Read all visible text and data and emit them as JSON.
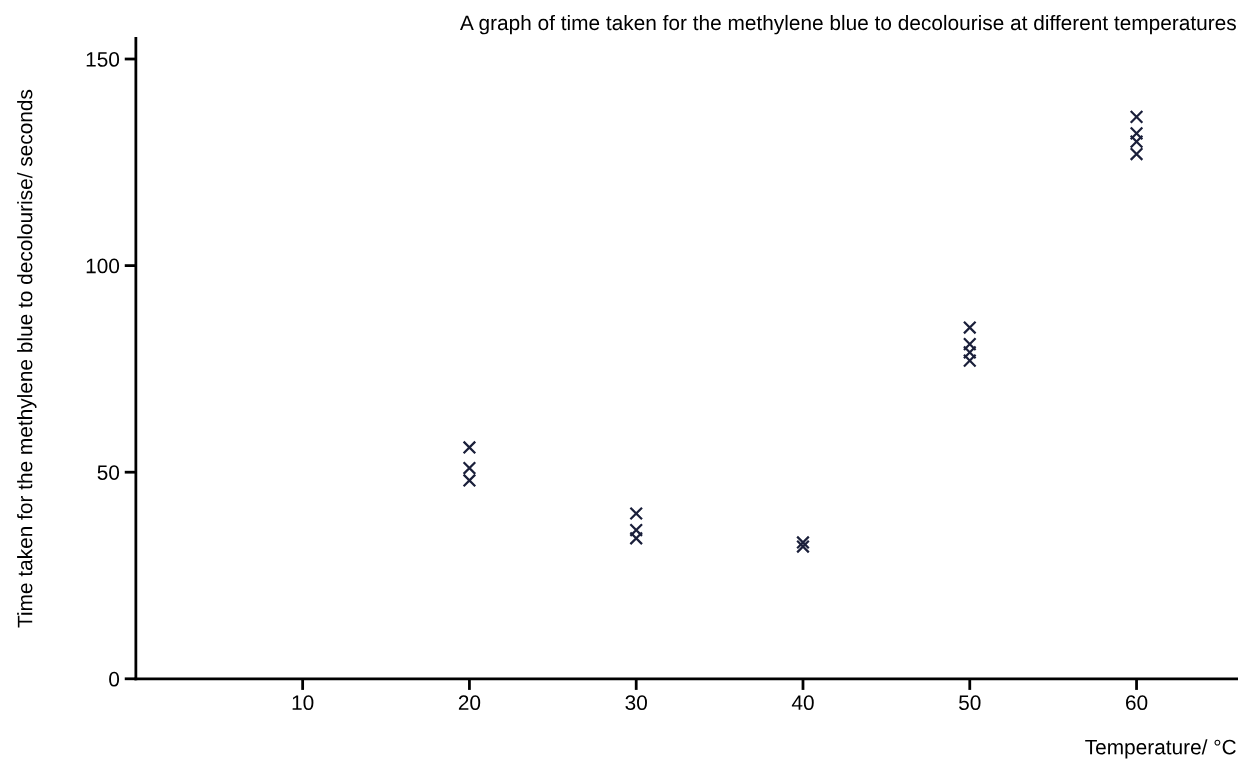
{
  "chart_data": {
    "type": "scatter",
    "title": "A graph of time taken for the methylene blue to decolourise at different temperatures",
    "xlabel": "Temperature/ °C",
    "ylabel": "Time taken for the methylene blue to decolourise/ seconds",
    "x": [
      20,
      20,
      20,
      30,
      30,
      30,
      40,
      40,
      50,
      50,
      50,
      50,
      60,
      60,
      60,
      60
    ],
    "series": [
      {
        "color": "#1a1f3a",
        "values": [
          56,
          51,
          48,
          40,
          36,
          34,
          33,
          32,
          85,
          81,
          79,
          77,
          136,
          132,
          130,
          127
        ]
      }
    ],
    "xlim": [
      0,
      66
    ],
    "xticks": [
      10,
      20,
      30,
      40,
      50,
      60
    ],
    "ylim": [
      0,
      155
    ],
    "yticks": [
      0,
      50,
      100,
      150
    ],
    "marker": "cross",
    "grid": false,
    "legend": false
  }
}
